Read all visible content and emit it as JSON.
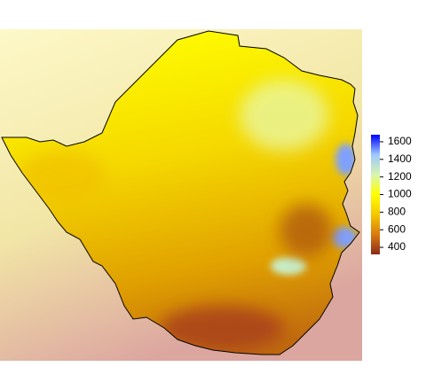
{
  "legend": {
    "zlim": [
      320,
      1680
    ],
    "ticks": [
      400,
      600,
      800,
      1000,
      1200,
      1400,
      1600
    ],
    "colors": [
      "#8b2a1a",
      "#d97a10",
      "#f5c800",
      "#ffff00",
      "#d8f5b0",
      "#9ec8ff",
      "#0000ff"
    ]
  }
}
